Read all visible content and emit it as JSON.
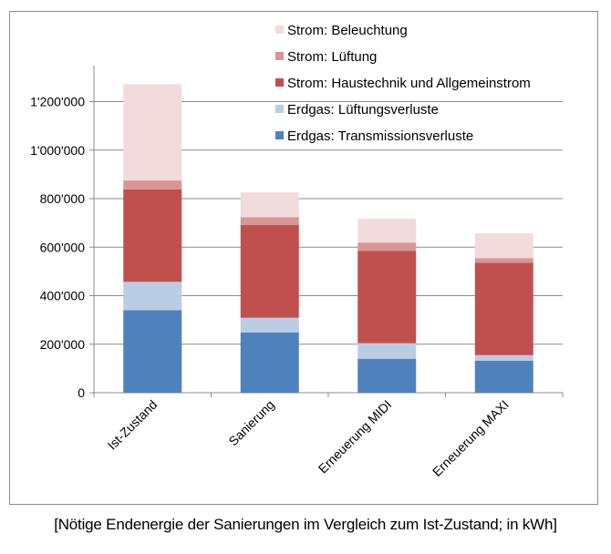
{
  "caption": "[Nötige Endenergie der Sanierungen im Vergleich zum Ist-Zustand; in kWh]",
  "chart_data": {
    "type": "bar",
    "stacked": true,
    "title": "",
    "xlabel": "",
    "ylabel": "",
    "ylim": [
      0,
      1300000
    ],
    "yticks": [
      0,
      200000,
      400000,
      600000,
      800000,
      1000000,
      1200000
    ],
    "ytick_labels": [
      "0",
      "200'000",
      "400'000",
      "600'000",
      "800'000",
      "1'000'000",
      "1'200'000"
    ],
    "grid": true,
    "legend_position": "top-right",
    "categories": [
      "Ist-Zustand",
      "Sanierung",
      "Erneuerung MIDI",
      "Erneuerung MAXI"
    ],
    "series": [
      {
        "name": "Erdgas: Transmissionsverluste",
        "color": "#4f81bd",
        "values": [
          340000,
          248000,
          140000,
          132000
        ]
      },
      {
        "name": "Erdgas: Lüftungsverluste",
        "color": "#b9cde5",
        "values": [
          117000,
          61000,
          64000,
          23000
        ]
      },
      {
        "name": "Strom: Haustechnik und Allgemeinstrom",
        "color": "#c0504d",
        "values": [
          381000,
          382000,
          381000,
          381000
        ]
      },
      {
        "name": "Strom: Lüftung",
        "color": "#d99694",
        "values": [
          37000,
          33000,
          34000,
          19000
        ]
      },
      {
        "name": "Strom: Beleuchtung",
        "color": "#f2dcdb",
        "values": [
          397000,
          102000,
          98000,
          102000
        ]
      }
    ],
    "legend_order": [
      4,
      3,
      2,
      1,
      0
    ]
  }
}
